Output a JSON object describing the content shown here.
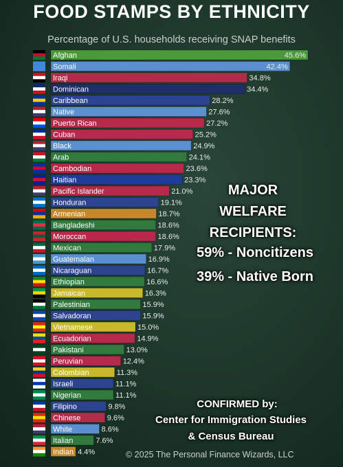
{
  "title": "FOOD STAMPS BY ETHNICITY",
  "subtitle": "Percentage of U.S. households receiving SNAP benefits",
  "chart_data": {
    "type": "bar",
    "orientation": "horizontal",
    "title": "FOOD STAMPS BY ETHNICITY",
    "subtitle": "Percentage of U.S. households receiving SNAP benefits",
    "xlim": [
      0,
      46
    ],
    "grid": false,
    "categories": [
      "Afghan",
      "Somali",
      "Iraqi",
      "Dominican",
      "Caribbean",
      "Native",
      "Puerto Rican",
      "Cuban",
      "Black",
      "Arab",
      "Cambodian",
      "Haitian",
      "Pacific Islander",
      "Honduran",
      "Armenian",
      "Bangladeshi",
      "Moroccan",
      "Mexican",
      "Guatemalan",
      "Nicaraguan",
      "Ethiopian",
      "Jamaican",
      "Palestinian",
      "Salvadoran",
      "Vietnamese",
      "Ecuadorian",
      "Pakistani",
      "Peruvian",
      "Colombian",
      "Israeli",
      "Nigerian",
      "Filipino",
      "Chinese",
      "White",
      "Italian",
      "Indian"
    ],
    "values": [
      45.6,
      42.4,
      34.8,
      34.4,
      28.2,
      27.6,
      27.2,
      25.2,
      24.9,
      24.1,
      23.6,
      23.3,
      21.0,
      19.1,
      18.7,
      18.6,
      18.6,
      17.9,
      16.9,
      16.7,
      16.6,
      16.3,
      15.9,
      15.9,
      15.0,
      14.9,
      13.0,
      12.4,
      11.3,
      11.1,
      11.1,
      9.8,
      9.6,
      8.6,
      7.6,
      4.4
    ],
    "value_labels": [
      "45.6%",
      "42.4%",
      "34.8%",
      "34.4%",
      "28.2%",
      "27.6%",
      "27.2%",
      "25.2%",
      "24.9%",
      "24.1%",
      "23.6%",
      "23.3%",
      "21.0%",
      "19.1%",
      "18.7%",
      "18.6%",
      "18.6%",
      "17.9%",
      "16.9%",
      "16.7%",
      "16.6%",
      "16.3%",
      "15.9%",
      "15.9%",
      "15.0%",
      "14.9%",
      "13.0%",
      "12.4%",
      "11.3%",
      "11.1%",
      "11.1%",
      "9.8%",
      "9.6%",
      "8.6%",
      "7.6%",
      "4.4%"
    ],
    "bar_colors": [
      "#4a9a3a",
      "#5a8fd0",
      "#b52a4a",
      "#1e2e66",
      "#2c4490",
      "#5a8fd0",
      "#b52a4a",
      "#b52a4a",
      "#5a8fd0",
      "#2f7a3c",
      "#b52a4a",
      "#1f3c99",
      "#b52a4a",
      "#2c4490",
      "#c8872a",
      "#2f7a3c",
      "#b52a4a",
      "#2f7a3c",
      "#5a8fd0",
      "#2c4490",
      "#2f7a3c",
      "#c8b82a",
      "#2f7a3c",
      "#2c4490",
      "#c8b82a",
      "#b52a4a",
      "#2f7a3c",
      "#b52a4a",
      "#c8b82a",
      "#2c4490",
      "#2f7a3c",
      "#2c4490",
      "#b52a4a",
      "#5a8fd0",
      "#2f7a3c",
      "#c8872a"
    ],
    "flag_colors": [
      [
        "#000000",
        "#c8102e",
        "#007a36"
      ],
      [
        "#4189dd",
        "#4189dd",
        "#4189dd"
      ],
      [
        "#ce1126",
        "#ffffff",
        "#000000"
      ],
      [
        "#002d62",
        "#ffffff",
        "#ce1126"
      ],
      [
        "#0033a0",
        "#ffd100",
        "#0033a0"
      ],
      [
        "#b22234",
        "#ffffff",
        "#3c3b6e"
      ],
      [
        "#ed0000",
        "#ffffff",
        "#0050f0"
      ],
      [
        "#002a8f",
        "#ffffff",
        "#cf142b"
      ],
      [
        "#b22234",
        "#ffffff",
        "#3c3b6e"
      ],
      [
        "#ce1126",
        "#ffffff",
        "#007a3d"
      ],
      [
        "#032ea1",
        "#e00025",
        "#032ea1"
      ],
      [
        "#00209f",
        "#d21034",
        "#00209f"
      ],
      [
        "#b22234",
        "#ffffff",
        "#3c3b6e"
      ],
      [
        "#0073cf",
        "#ffffff",
        "#0073cf"
      ],
      [
        "#d90012",
        "#0033a0",
        "#f2a800"
      ],
      [
        "#006a4e",
        "#f42a41",
        "#006a4e"
      ],
      [
        "#c1272d",
        "#006233",
        "#c1272d"
      ],
      [
        "#006847",
        "#ffffff",
        "#ce1126"
      ],
      [
        "#4997d0",
        "#ffffff",
        "#4997d0"
      ],
      [
        "#0067c6",
        "#ffffff",
        "#0067c6"
      ],
      [
        "#078930",
        "#fcdd09",
        "#da121a"
      ],
      [
        "#009b3a",
        "#fed100",
        "#000000"
      ],
      [
        "#000000",
        "#ffffff",
        "#007a3d"
      ],
      [
        "#0f47af",
        "#ffffff",
        "#0f47af"
      ],
      [
        "#da251d",
        "#ffff00",
        "#da251d"
      ],
      [
        "#ffdd00",
        "#034ea2",
        "#ed1c24"
      ],
      [
        "#01411c",
        "#ffffff",
        "#01411c"
      ],
      [
        "#d91023",
        "#ffffff",
        "#d91023"
      ],
      [
        "#fcd116",
        "#003893",
        "#ce1126"
      ],
      [
        "#ffffff",
        "#0038b8",
        "#ffffff"
      ],
      [
        "#008751",
        "#ffffff",
        "#008751"
      ],
      [
        "#0038a8",
        "#ffffff",
        "#ce1126"
      ],
      [
        "#de2910",
        "#ffde00",
        "#de2910"
      ],
      [
        "#b22234",
        "#ffffff",
        "#3c3b6e"
      ],
      [
        "#009246",
        "#ffffff",
        "#ce2b37"
      ],
      [
        "#ff9933",
        "#ffffff",
        "#138808"
      ]
    ]
  },
  "notes": {
    "major_title": "MAJOR\nWELFARE\nRECIPIENTS:",
    "major_line1": "59% - Noncitizens",
    "major_line2": "39% - Native Born",
    "confirmed_title": "CONFIRMED by:",
    "confirmed_line1": "Center for Immigration Studies",
    "confirmed_line2": "& Census Bureau"
  },
  "copyright": "© 2025 The Personal Finance Wizards, LLC"
}
